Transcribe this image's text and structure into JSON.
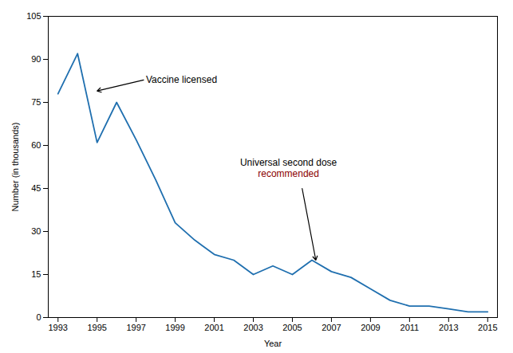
{
  "chart_data": {
    "type": "line",
    "x": [
      1993,
      1994,
      1995,
      1996,
      1997,
      1998,
      1999,
      2000,
      2001,
      2002,
      2003,
      2004,
      2005,
      2006,
      2007,
      2008,
      2009,
      2010,
      2011,
      2012,
      2013,
      2014,
      2015
    ],
    "values": [
      78,
      92,
      61,
      75,
      62,
      48,
      33,
      27,
      22,
      20,
      15,
      18,
      15,
      20,
      16,
      14,
      10,
      6,
      4,
      4,
      3,
      2,
      2
    ],
    "color": "#1F6FAF",
    "xlabel": "Year",
    "ylabel": "Number (in thousands)",
    "xlim": [
      1992.5,
      2015.5
    ],
    "ylim": [
      0,
      105
    ],
    "xticks": [
      1993,
      1995,
      1997,
      1999,
      2001,
      2003,
      2005,
      2007,
      2009,
      2011,
      2013,
      2015
    ],
    "yticks": [
      0,
      15,
      30,
      45,
      60,
      75,
      90,
      105
    ],
    "grid": false,
    "annotations": [
      {
        "text": "Vaccine licensed",
        "xy": [
          1995.0,
          79
        ],
        "xytext": [
          1997.5,
          83
        ]
      },
      {
        "lines": [
          {
            "text": "Universal second dose",
            "color": "#000000"
          },
          {
            "text": "recommended",
            "color": "#8B0000"
          }
        ],
        "xy": [
          2006.2,
          20
        ],
        "arrow_start": [
          2005.5,
          45
        ],
        "text_xy": [
          2004.8,
          53
        ]
      }
    ]
  }
}
